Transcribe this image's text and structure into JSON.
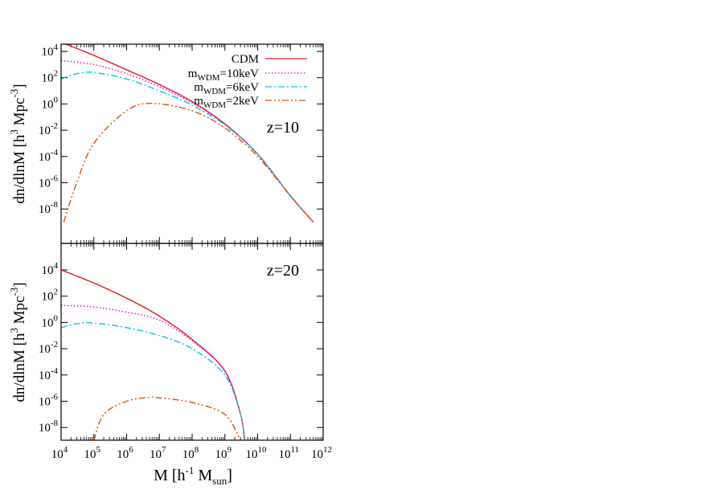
{
  "chart_data": [
    {
      "type": "line",
      "annotation": "z=10",
      "xscale": "log",
      "yscale": "log",
      "xlim": [
        10000,
        1000000000000
      ],
      "ylim": [
        1e-09,
        1000000
      ],
      "ylabel": "dn/dlnM [h^3 Mpc^-3]",
      "legend": "top-right",
      "series": [
        {
          "name": "CDM",
          "color": "#e41a1c",
          "dash": "solid",
          "x": [
            10000.0,
            100000.0,
            1000000.0,
            10000000.0,
            100000000.0,
            1000000000.0,
            10000000000.0,
            100000000000.0,
            500000000000.0
          ],
          "y": [
            50000,
            5000,
            400,
            30,
            1.5,
            0.03,
            0.00015,
            1e-07,
            1e-09
          ]
        },
        {
          "name": "m_WDM=10keV",
          "color": "#e000e0",
          "dash": "dotted",
          "x": [
            10000.0,
            100000.0,
            1000000.0,
            10000000.0,
            100000000.0,
            1000000000.0,
            10000000000.0,
            100000000000.0,
            500000000000.0
          ],
          "y": [
            2000,
            1000,
            200,
            20,
            1.2,
            0.03,
            0.00015,
            1e-07,
            1e-09
          ]
        },
        {
          "name": "m_WDM=6keV",
          "color": "#00c8e0",
          "dash": "dashdot",
          "x": [
            10000.0,
            30000.0,
            100000.0,
            1000000.0,
            10000000.0,
            100000000.0,
            1000000000.0,
            10000000000.0,
            100000000000.0,
            500000000000.0
          ],
          "y": [
            80,
            200,
            250,
            80,
            10,
            0.8,
            0.025,
            0.00015,
            1e-07,
            1e-09
          ]
        },
        {
          "name": "m_WDM=2keV",
          "color": "#e05000",
          "dash": "dashdotdot",
          "x": [
            12000.0,
            30000.0,
            100000.0,
            1000000.0,
            6000000.0,
            100000000.0,
            1000000000.0,
            10000000000.0,
            100000000000.0,
            500000000000.0
          ],
          "y": [
            1e-09,
            1e-06,
            0.001,
            0.3,
            1.1,
            0.3,
            0.015,
            0.0001,
            1e-07,
            1e-09
          ]
        }
      ]
    },
    {
      "type": "line",
      "annotation": "z=20",
      "xscale": "log",
      "yscale": "log",
      "xlim": [
        10000,
        1000000000000
      ],
      "ylim": [
        1e-09,
        1000000
      ],
      "xlabel": "M [h^-1 M_sun]",
      "ylabel": "dn/dlnM [h^3 Mpc^-3]",
      "series": [
        {
          "name": "CDM",
          "color": "#e41a1c",
          "dash": "solid",
          "x": [
            10000.0,
            100000.0,
            1000000.0,
            10000000.0,
            100000000.0,
            1000000000.0,
            3000000000.0,
            4000000000.0
          ],
          "y": [
            10000,
            1000,
            70,
            3,
            0.05,
            0.0002,
            1e-07,
            1e-09
          ]
        },
        {
          "name": "m_WDM=10keV",
          "color": "#e000e0",
          "dash": "dotted",
          "x": [
            10000.0,
            100000.0,
            1000000.0,
            10000000.0,
            100000000.0,
            1000000000.0,
            3000000000.0,
            4000000000.0
          ],
          "y": [
            20,
            15,
            6,
            1.5,
            0.04,
            0.0002,
            1e-07,
            1e-09
          ]
        },
        {
          "name": "m_WDM=6keV",
          "color": "#00c8e0",
          "dash": "dashdot",
          "x": [
            10000.0,
            30000.0,
            100000.0,
            1000000.0,
            10000000.0,
            100000000.0,
            1000000000.0,
            3000000000.0,
            4000000000.0
          ],
          "y": [
            0.4,
            0.8,
            0.9,
            0.4,
            0.1,
            0.01,
            0.0001,
            1e-07,
            1e-09
          ]
        },
        {
          "name": "m_WDM=2keV",
          "color": "#e05000",
          "dash": "dashdotdot",
          "x": [
            100000.0,
            200000.0,
            1000000.0,
            5000000.0,
            10000000.0,
            100000000.0,
            1000000000.0,
            3000000000.0
          ],
          "y": [
            1e-09,
            1e-07,
            1e-06,
            2e-06,
            1.8e-06,
            8e-07,
            1e-07,
            1e-09
          ]
        }
      ]
    }
  ],
  "legend_labels": {
    "cdm": "CDM",
    "wdm10": {
      "base": "m",
      "sub": "WDM",
      "suffix": "=10keV"
    },
    "wdm6": {
      "base": "m",
      "sub": "WDM",
      "suffix": "=6keV"
    },
    "wdm2": {
      "base": "m",
      "sub": "WDM",
      "suffix": "=2keV"
    }
  },
  "axis_text": {
    "ylabel_main": "dn/dlnM [h",
    "ylabel_exp1": "3",
    "ylabel_mid": " Mpc",
    "ylabel_exp2": "-3",
    "ylabel_end": "]",
    "xlabel_main": "M [h",
    "xlabel_exp": "-1",
    "xlabel_mid": " M",
    "xlabel_sub": "sun",
    "xlabel_end": "]"
  },
  "ticks": {
    "x": [
      {
        "base": "10",
        "exp": "4"
      },
      {
        "base": "10",
        "exp": "5"
      },
      {
        "base": "10",
        "exp": "6"
      },
      {
        "base": "10",
        "exp": "7"
      },
      {
        "base": "10",
        "exp": "8"
      },
      {
        "base": "10",
        "exp": "9"
      },
      {
        "base": "10",
        "exp": "10"
      },
      {
        "base": "10",
        "exp": "11"
      },
      {
        "base": "10",
        "exp": "12"
      }
    ],
    "y": [
      {
        "base": "10",
        "exp": "4"
      },
      {
        "base": "10",
        "exp": "2"
      },
      {
        "base": "10",
        "exp": "0"
      },
      {
        "base": "10",
        "exp": "-2"
      },
      {
        "base": "10",
        "exp": "-4"
      },
      {
        "base": "10",
        "exp": "-6"
      },
      {
        "base": "10",
        "exp": "-8"
      }
    ]
  }
}
